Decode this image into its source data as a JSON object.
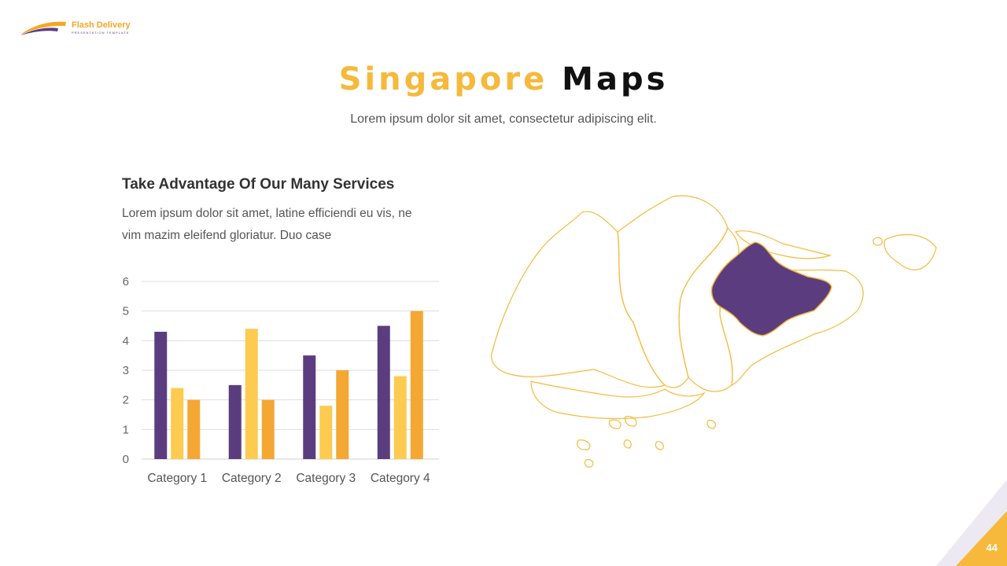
{
  "brand": {
    "name": "Flash Delivery",
    "tagline": "PRESENTATION TEMPLATE"
  },
  "title": {
    "part1": "Singapore",
    "part2": "Maps"
  },
  "subtitle": "Lorem ipsum dolor sit amet, consectetur adipiscing elit.",
  "section": {
    "heading": "Take Advantage Of Our Many Services",
    "body": "Lorem ipsum dolor sit amet, latine efficiendi eu vis, ne vim mazim eleifend gloriatur. Duo case"
  },
  "chart_data": {
    "type": "bar",
    "categories": [
      "Category 1",
      "Category 2",
      "Category 3",
      "Category 4"
    ],
    "series": [
      {
        "values": [
          4.3,
          2.5,
          3.5,
          4.5
        ],
        "color": "#5b3d7f"
      },
      {
        "values": [
          2.4,
          4.4,
          1.8,
          2.8
        ],
        "color": "#fccb4f"
      },
      {
        "values": [
          2,
          2,
          3,
          5
        ],
        "color": "#f5a733"
      }
    ],
    "ylim": [
      0,
      6
    ],
    "yticks": [
      0,
      1,
      2,
      3,
      4,
      5,
      6
    ],
    "grid": true
  },
  "map": {
    "highlight_color": "#5b3d7f",
    "outline_color": "#f6b93b"
  },
  "page_number": "44"
}
